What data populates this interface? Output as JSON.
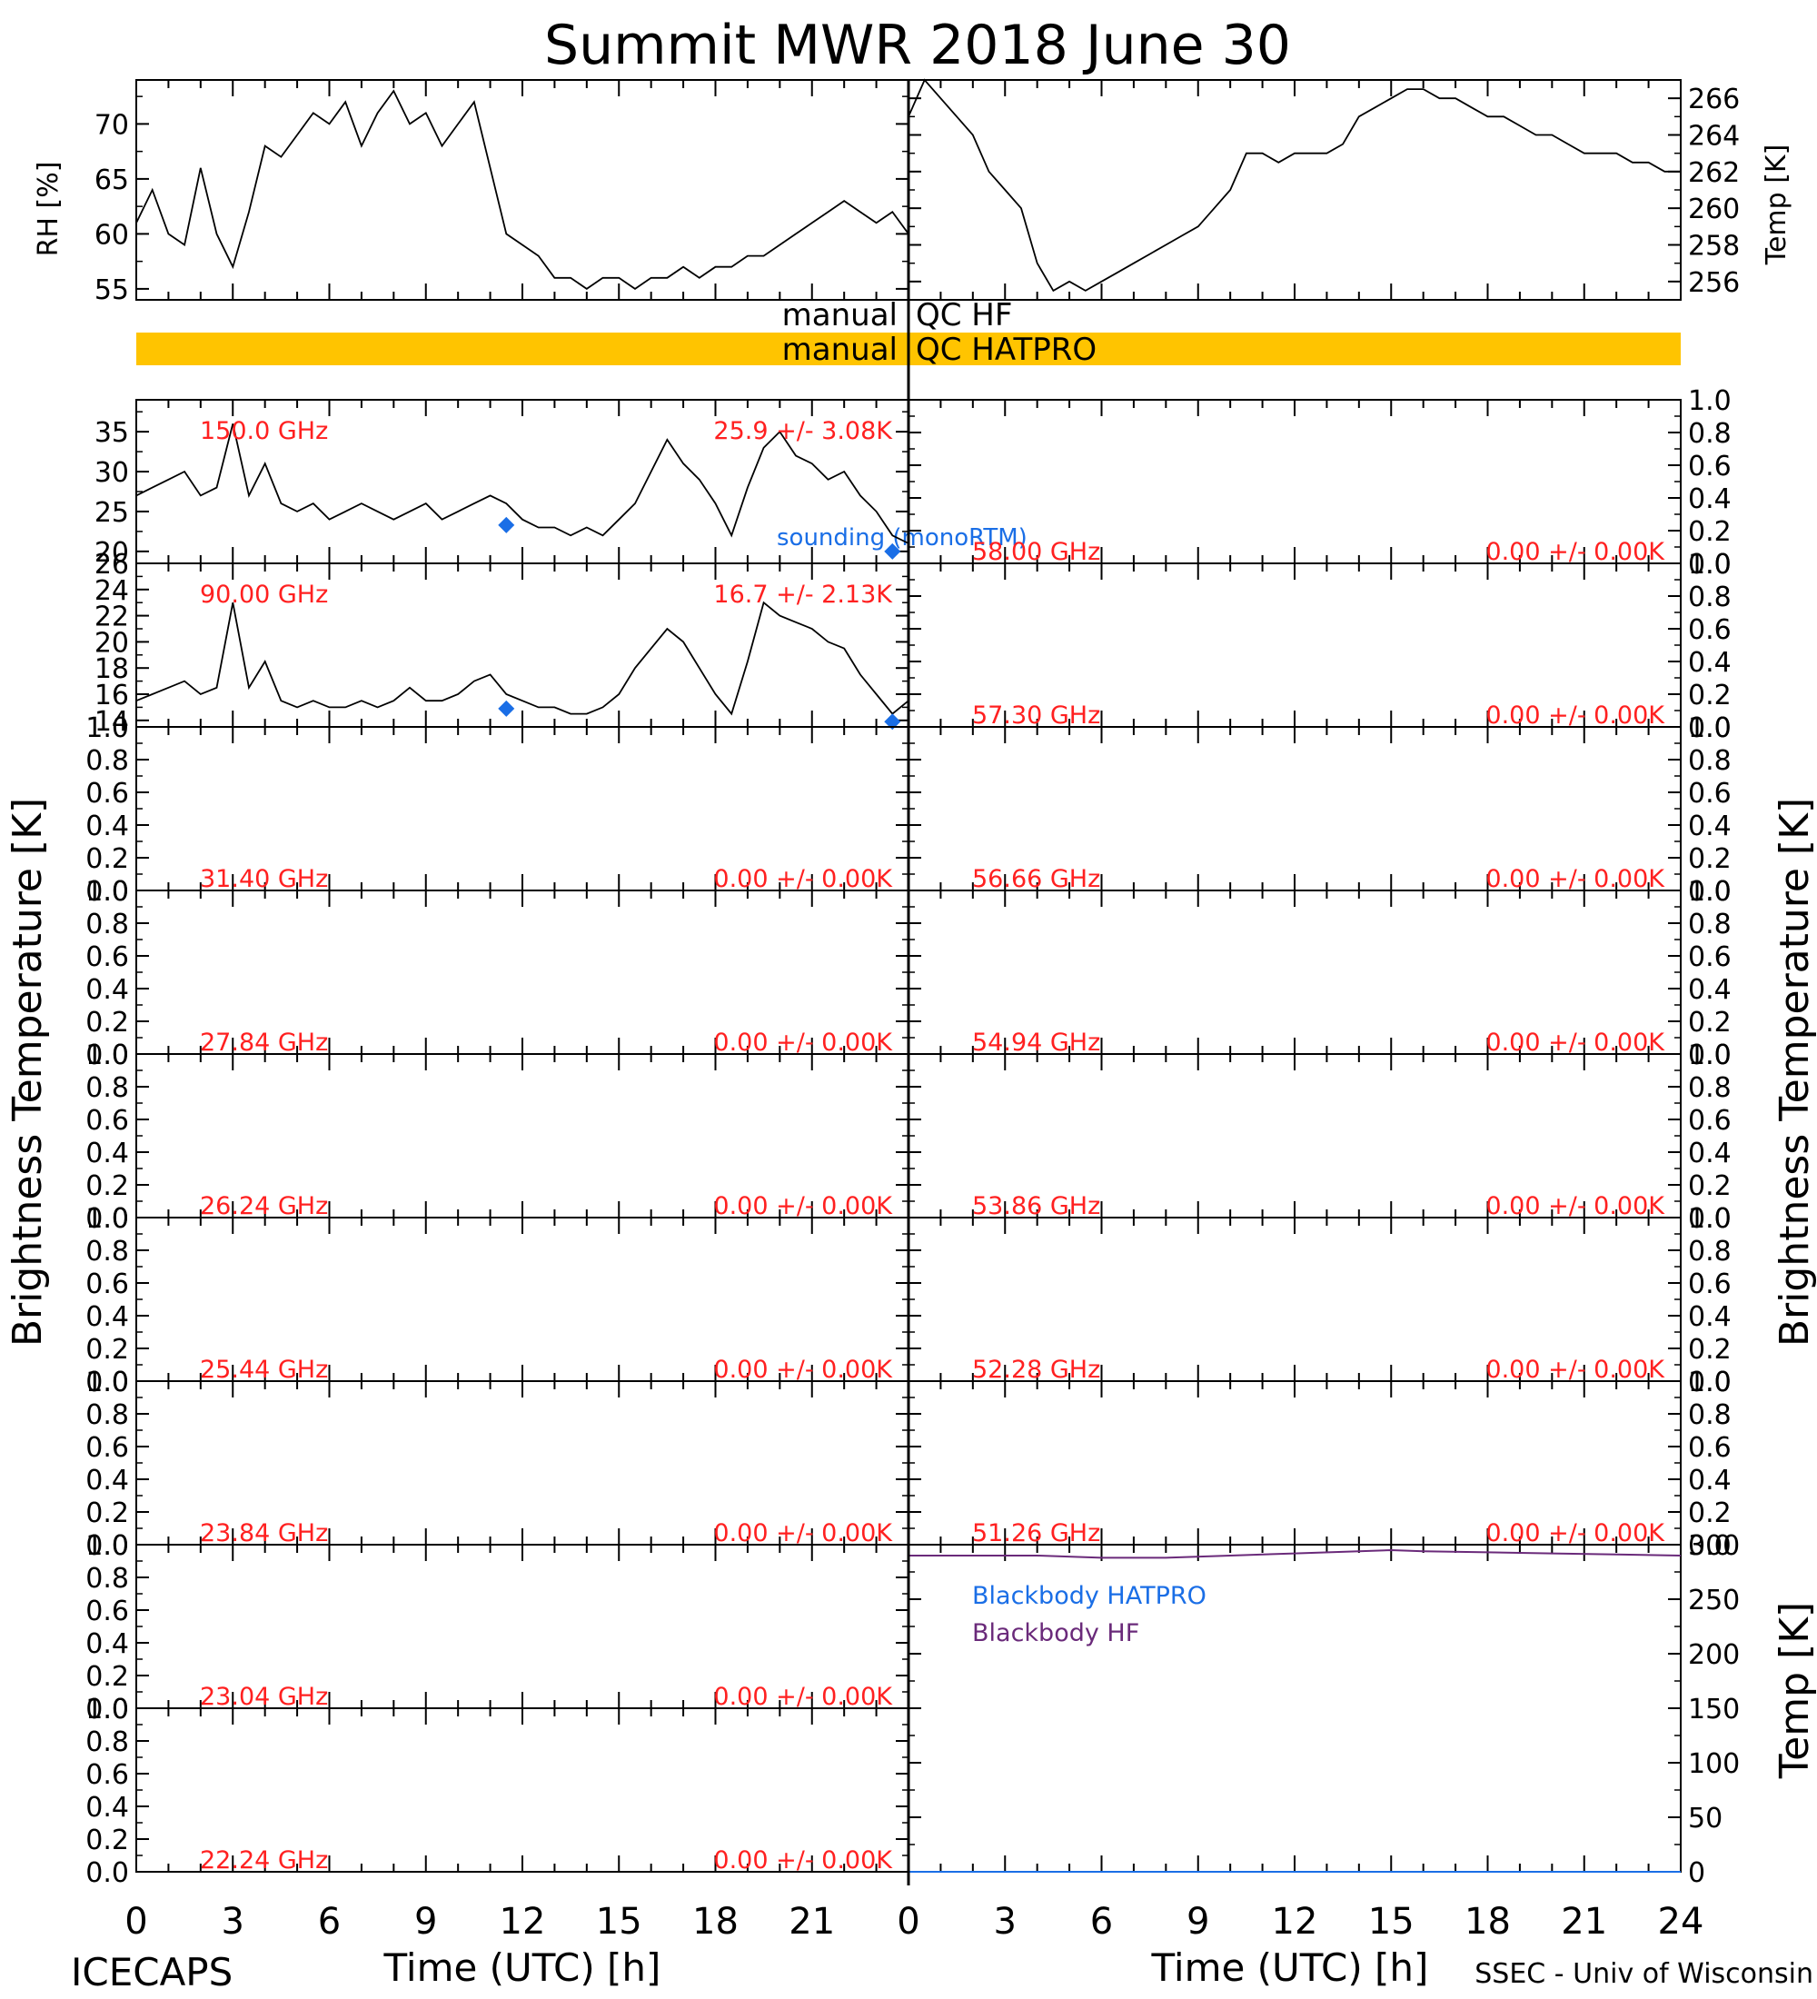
{
  "page": {
    "title": "Summit MWR 2018 June 30",
    "footer_left": "ICECAPS",
    "footer_right": "SSEC - Univ of Wisconsin",
    "xlabel_left": "Time (UTC) [h]",
    "xlabel_right": "Time (UTC) [h]",
    "ylabel_left": "Brightness Temperature [K]",
    "ylabel_right": "Brightness Temperature [K]",
    "qc_hf_label_left": "manual",
    "qc_hf_label_right": "QC HF",
    "qc_hatpro_label_left": "manual",
    "qc_hatpro_label_right": "QC HATPRO",
    "sounding_label": "sounding (monoRTM)",
    "colors": {
      "qc_bar": "#ffc400",
      "annotation": "#ff2020",
      "sounding": "#1a6ee6",
      "bb_hf": "#6a2a7a",
      "data": "#000000"
    }
  },
  "chart_data": [
    {
      "id": "rh",
      "type": "line",
      "ylabel": "RH [%]",
      "xlim": [
        0,
        24
      ],
      "ylim": [
        54,
        74
      ],
      "yticks": [
        55,
        60,
        65,
        70
      ],
      "x": [
        0,
        0.5,
        1,
        1.5,
        2,
        2.5,
        3,
        3.5,
        4,
        4.5,
        5,
        5.5,
        6,
        6.5,
        7,
        7.5,
        8,
        8.5,
        9,
        9.5,
        10,
        10.5,
        11,
        11.5,
        12,
        12.5,
        13,
        13.5,
        14,
        14.5,
        15,
        15.5,
        16,
        16.5,
        17,
        17.5,
        18,
        18.5,
        19,
        19.5,
        20,
        20.5,
        21,
        21.5,
        22,
        22.5,
        23,
        23.5,
        24
      ],
      "values": [
        61,
        64,
        60,
        59,
        66,
        60,
        57,
        62,
        68,
        67,
        69,
        71,
        70,
        72,
        68,
        71,
        73,
        70,
        71,
        68,
        70,
        72,
        66,
        60,
        59,
        58,
        56,
        56,
        55,
        56,
        56,
        55,
        56,
        56,
        57,
        56,
        57,
        57,
        58,
        58,
        59,
        60,
        61,
        62,
        63,
        62,
        61,
        62,
        60
      ]
    },
    {
      "id": "temp",
      "type": "line",
      "ylabel": "Temp [K]",
      "xlim": [
        0,
        24
      ],
      "ylim": [
        255,
        267
      ],
      "yticks": [
        256,
        258,
        260,
        262,
        264,
        266
      ],
      "x": [
        0,
        0.5,
        1,
        1.5,
        2,
        2.5,
        3,
        3.5,
        4,
        4.5,
        5,
        5.5,
        6,
        6.5,
        7,
        7.5,
        8,
        8.5,
        9,
        9.5,
        10,
        10.5,
        11,
        11.5,
        12,
        12.5,
        13,
        13.5,
        14,
        14.5,
        15,
        15.5,
        16,
        16.5,
        17,
        17.5,
        18,
        18.5,
        19,
        19.5,
        20,
        20.5,
        21,
        21.5,
        22,
        22.5,
        23,
        23.5,
        24
      ],
      "values": [
        265,
        267,
        266,
        265,
        264,
        262,
        261,
        260,
        257,
        255.5,
        256,
        255.5,
        256,
        256.5,
        257,
        257.5,
        258,
        258.5,
        259,
        260,
        261,
        263,
        263,
        262.5,
        263,
        263,
        263,
        263.5,
        265,
        265.5,
        266,
        266.5,
        266.5,
        266,
        266,
        265.5,
        265,
        265,
        264.5,
        264,
        264,
        263.5,
        263,
        263,
        263,
        262.5,
        262.5,
        262,
        262
      ]
    },
    {
      "id": "tb150",
      "type": "line",
      "freq_label": "150.0 GHz",
      "stat_label": "25.9 +/- 3.08K",
      "xlim": [
        0,
        24
      ],
      "ylim": [
        18.5,
        39
      ],
      "yticks": [
        20,
        25,
        30,
        35
      ],
      "x": [
        0,
        0.5,
        1,
        1.5,
        2,
        2.5,
        3,
        3.5,
        4,
        4.5,
        5,
        5.5,
        6,
        6.5,
        7,
        7.5,
        8,
        8.5,
        9,
        9.5,
        10,
        10.5,
        11,
        11.5,
        12,
        12.5,
        13,
        13.5,
        14,
        14.5,
        15,
        15.5,
        16,
        16.5,
        17,
        17.5,
        18,
        18.5,
        19,
        19.5,
        20,
        20.5,
        21,
        21.5,
        22,
        22.5,
        23,
        23.5,
        24
      ],
      "values": [
        27,
        28,
        29,
        30,
        27,
        28,
        36,
        27,
        31,
        26,
        25,
        26,
        24,
        25,
        26,
        25,
        24,
        25,
        26,
        24,
        25,
        26,
        27,
        26,
        24,
        23,
        23,
        22,
        23,
        22,
        24,
        26,
        30,
        34,
        31,
        29,
        26,
        22,
        28,
        33,
        35,
        32,
        31,
        29,
        30,
        27,
        25,
        22,
        21
      ],
      "sounding": {
        "x": [
          11.5,
          23.5
        ],
        "y": [
          23.3,
          20.0
        ]
      }
    },
    {
      "id": "tb90",
      "type": "line",
      "freq_label": "90.00 GHz",
      "stat_label": "16.7 +/- 2.13K",
      "xlim": [
        0,
        24
      ],
      "ylim": [
        13.5,
        26
      ],
      "yticks": [
        14,
        16,
        18,
        20,
        22,
        24,
        26
      ],
      "x": [
        0,
        0.5,
        1,
        1.5,
        2,
        2.5,
        3,
        3.5,
        4,
        4.5,
        5,
        5.5,
        6,
        6.5,
        7,
        7.5,
        8,
        8.5,
        9,
        9.5,
        10,
        10.5,
        11,
        11.5,
        12,
        12.5,
        13,
        13.5,
        14,
        14.5,
        15,
        15.5,
        16,
        16.5,
        17,
        17.5,
        18,
        18.5,
        19,
        19.5,
        20,
        20.5,
        21,
        21.5,
        22,
        22.5,
        23,
        23.5,
        24
      ],
      "values": [
        15.5,
        16,
        16.5,
        17,
        16,
        16.5,
        23,
        16.5,
        18.5,
        15.5,
        15,
        15.5,
        15,
        15,
        15.5,
        15,
        15.5,
        16.5,
        15.5,
        15.5,
        16,
        17,
        17.5,
        16,
        15.5,
        15,
        15,
        14.5,
        14.5,
        15,
        16,
        18,
        19.5,
        21,
        20,
        18,
        16,
        14.5,
        18.5,
        23,
        22,
        21.5,
        21,
        20,
        19.5,
        17.5,
        16,
        14.5,
        15.5
      ],
      "sounding": {
        "x": [
          11.5,
          23.5
        ],
        "y": [
          14.9,
          13.9
        ]
      }
    },
    {
      "id": "tb31.40",
      "type": "line",
      "freq_label": "31.40 GHz",
      "stat_label": "0.00 +/- 0.00K",
      "xlim": [
        0,
        24
      ],
      "ylim": [
        0,
        1
      ],
      "yticks": [
        0.0,
        0.2,
        0.4,
        0.6,
        0.8,
        1.0
      ],
      "x": [],
      "values": []
    },
    {
      "id": "tb27.84",
      "type": "line",
      "freq_label": "27.84 GHz",
      "stat_label": "0.00 +/- 0.00K",
      "xlim": [
        0,
        24
      ],
      "ylim": [
        0,
        1
      ],
      "yticks": [
        0.0,
        0.2,
        0.4,
        0.6,
        0.8,
        1.0
      ],
      "x": [],
      "values": []
    },
    {
      "id": "tb26.24",
      "type": "line",
      "freq_label": "26.24 GHz",
      "stat_label": "0.00 +/- 0.00K",
      "xlim": [
        0,
        24
      ],
      "ylim": [
        0,
        1
      ],
      "yticks": [
        0.0,
        0.2,
        0.4,
        0.6,
        0.8,
        1.0
      ],
      "x": [],
      "values": []
    },
    {
      "id": "tb25.44",
      "type": "line",
      "freq_label": "25.44 GHz",
      "stat_label": "0.00 +/- 0.00K",
      "xlim": [
        0,
        24
      ],
      "ylim": [
        0,
        1
      ],
      "yticks": [
        0.0,
        0.2,
        0.4,
        0.6,
        0.8,
        1.0
      ],
      "x": [],
      "values": []
    },
    {
      "id": "tb23.84",
      "type": "line",
      "freq_label": "23.84 GHz",
      "stat_label": "0.00 +/- 0.00K",
      "xlim": [
        0,
        24
      ],
      "ylim": [
        0,
        1
      ],
      "yticks": [
        0.0,
        0.2,
        0.4,
        0.6,
        0.8,
        1.0
      ],
      "x": [],
      "values": []
    },
    {
      "id": "tb23.04",
      "type": "line",
      "freq_label": "23.04 GHz",
      "stat_label": "0.00 +/- 0.00K",
      "xlim": [
        0,
        24
      ],
      "ylim": [
        0,
        1
      ],
      "yticks": [
        0.0,
        0.2,
        0.4,
        0.6,
        0.8,
        1.0
      ],
      "x": [],
      "values": []
    },
    {
      "id": "tb22.24",
      "type": "line",
      "freq_label": "22.24 GHz",
      "stat_label": "0.00 +/- 0.00K",
      "xlim": [
        0,
        24
      ],
      "ylim": [
        0,
        1
      ],
      "yticks": [
        0.0,
        0.2,
        0.4,
        0.6,
        0.8,
        1.0
      ],
      "x": [],
      "values": []
    },
    {
      "id": "tb58.00",
      "type": "line",
      "freq_label": "58.00 GHz",
      "stat_label": "0.00 +/- 0.00K",
      "xlim": [
        0,
        24
      ],
      "ylim": [
        0,
        1
      ],
      "yticks": [
        0.0,
        0.2,
        0.4,
        0.6,
        0.8,
        1.0
      ],
      "x": [],
      "values": []
    },
    {
      "id": "tb57.30",
      "type": "line",
      "freq_label": "57.30 GHz",
      "stat_label": "0.00 +/- 0.00K",
      "xlim": [
        0,
        24
      ],
      "ylim": [
        0,
        1
      ],
      "yticks": [
        0.0,
        0.2,
        0.4,
        0.6,
        0.8,
        1.0
      ],
      "x": [],
      "values": []
    },
    {
      "id": "tb56.66",
      "type": "line",
      "freq_label": "56.66 GHz",
      "stat_label": "0.00 +/- 0.00K",
      "xlim": [
        0,
        24
      ],
      "ylim": [
        0,
        1
      ],
      "yticks": [
        0.0,
        0.2,
        0.4,
        0.6,
        0.8,
        1.0
      ],
      "x": [],
      "values": []
    },
    {
      "id": "tb54.94",
      "type": "line",
      "freq_label": "54.94 GHz",
      "stat_label": "0.00 +/- 0.00K",
      "xlim": [
        0,
        24
      ],
      "ylim": [
        0,
        1
      ],
      "yticks": [
        0.0,
        0.2,
        0.4,
        0.6,
        0.8,
        1.0
      ],
      "x": [],
      "values": []
    },
    {
      "id": "tb53.86",
      "type": "line",
      "freq_label": "53.86 GHz",
      "stat_label": "0.00 +/- 0.00K",
      "xlim": [
        0,
        24
      ],
      "ylim": [
        0,
        1
      ],
      "yticks": [
        0.0,
        0.2,
        0.4,
        0.6,
        0.8,
        1.0
      ],
      "x": [],
      "values": []
    },
    {
      "id": "tb52.28",
      "type": "line",
      "freq_label": "52.28 GHz",
      "stat_label": "0.00 +/- 0.00K",
      "xlim": [
        0,
        24
      ],
      "ylim": [
        0,
        1
      ],
      "yticks": [
        0.0,
        0.2,
        0.4,
        0.6,
        0.8,
        1.0
      ],
      "x": [],
      "values": []
    },
    {
      "id": "tb51.26",
      "type": "line",
      "freq_label": "51.26 GHz",
      "stat_label": "0.00 +/- 0.00K",
      "xlim": [
        0,
        24
      ],
      "ylim": [
        0,
        1
      ],
      "yticks": [
        0.0,
        0.2,
        0.4,
        0.6,
        0.8,
        1.0
      ],
      "x": [],
      "values": []
    },
    {
      "id": "blackbody",
      "type": "line",
      "ylabel": "Temp [K]",
      "xlim": [
        0,
        24
      ],
      "ylim": [
        0,
        300
      ],
      "yticks": [
        0,
        50,
        100,
        150,
        200,
        250,
        300
      ],
      "series": [
        {
          "name": "Blackbody HATPRO",
          "x": [
            0,
            24
          ],
          "values": [
            0,
            0
          ]
        },
        {
          "name": "Blackbody HF",
          "x": [
            0,
            2,
            4,
            6,
            8,
            10,
            12,
            14,
            15,
            16,
            18,
            20,
            22,
            24
          ],
          "values": [
            290,
            290,
            290,
            288,
            288,
            290,
            292,
            294,
            295,
            294,
            293,
            292,
            291,
            290
          ]
        }
      ]
    }
  ]
}
